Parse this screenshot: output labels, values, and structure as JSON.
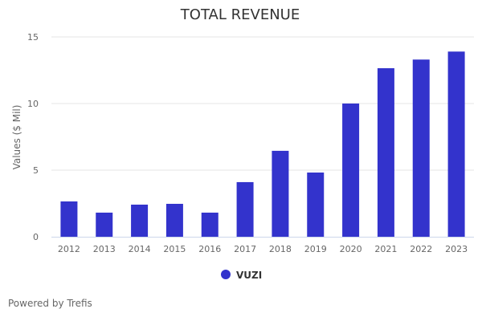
{
  "chart_data": {
    "type": "bar",
    "title": "TOTAL REVENUE",
    "xlabel": "",
    "ylabel": "Values ($ Mil)",
    "categories": [
      "2012",
      "2013",
      "2014",
      "2015",
      "2016",
      "2017",
      "2018",
      "2019",
      "2020",
      "2021",
      "2022",
      "2023"
    ],
    "series": [
      {
        "name": "VUZI",
        "color": "#3333cc",
        "values": [
          2.65,
          1.81,
          2.41,
          2.47,
          1.81,
          4.1,
          6.45,
          4.82,
          10.0,
          12.65,
          13.3,
          13.9
        ]
      }
    ],
    "ylim": [
      0,
      15
    ],
    "yticks": [
      "0",
      "5",
      "10",
      "15"
    ],
    "ytick_values": [
      0,
      5,
      10,
      15
    ],
    "grid": true,
    "legend_position": "bottom-center"
  },
  "credit": "Powered by Trefis",
  "colors": {
    "grid": "#e6e6e6",
    "axis": "#ccd6eb"
  }
}
